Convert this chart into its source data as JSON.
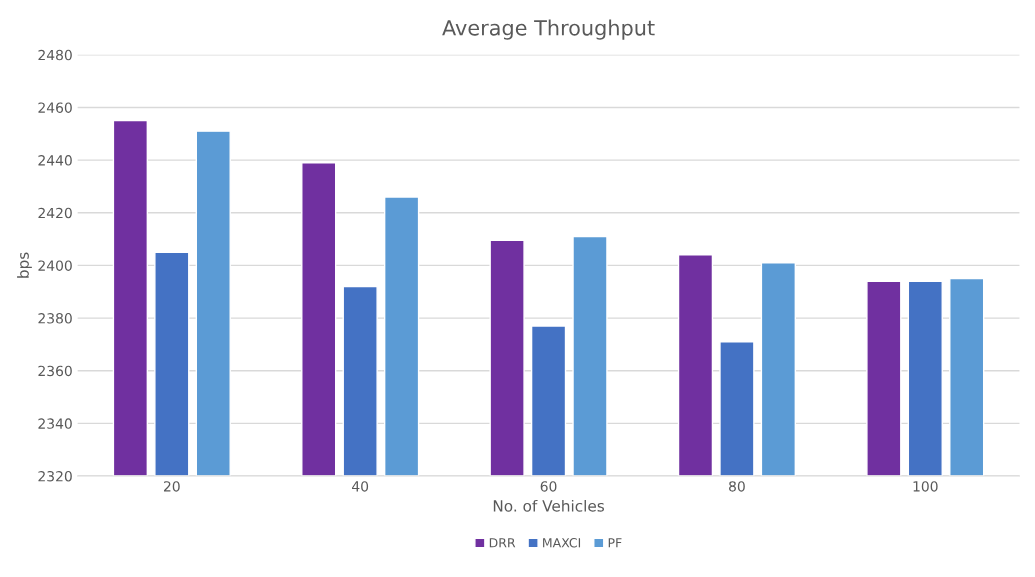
{
  "chart_data": {
    "type": "bar",
    "title": "Average Throughput",
    "xlabel": "No. of Vehicles",
    "ylabel": "bps",
    "categories": [
      "20",
      "40",
      "60",
      "80",
      "100"
    ],
    "series": [
      {
        "name": "DRR",
        "color": "#7030a0",
        "values": [
          2455,
          2439,
          2409.5,
          2404,
          2394
        ]
      },
      {
        "name": "MAXCI",
        "color": "#4472c4",
        "values": [
          2405,
          2392,
          2377,
          2371,
          2394
        ]
      },
      {
        "name": "PF",
        "color": "#5b9bd5",
        "values": [
          2451,
          2426,
          2411,
          2401,
          2395
        ]
      }
    ],
    "ylim": [
      2320,
      2480
    ],
    "yticks": [
      2320,
      2340,
      2360,
      2380,
      2400,
      2420,
      2440,
      2460,
      2480
    ],
    "grid": "y",
    "legend": "bottom"
  }
}
